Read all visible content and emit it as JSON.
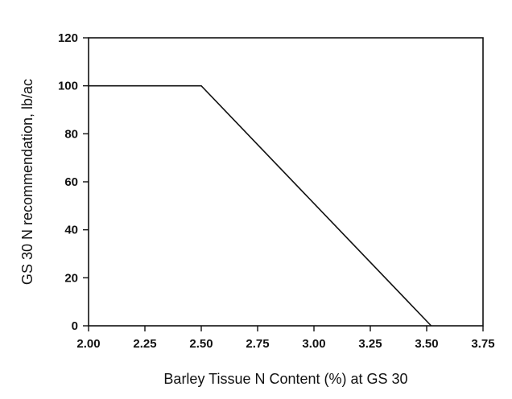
{
  "chart_data": {
    "type": "line",
    "title": "",
    "xlabel": "Barley Tissue N Content (%) at GS 30",
    "ylabel": "GS 30 N recommendation, lb/ac",
    "xlim": [
      2.0,
      3.75
    ],
    "ylim": [
      0,
      120
    ],
    "x_ticks": [
      "2.00",
      "2.25",
      "2.50",
      "2.75",
      "3.00",
      "3.25",
      "3.50",
      "3.75"
    ],
    "y_ticks": [
      "0",
      "20",
      "40",
      "60",
      "80",
      "100",
      "120"
    ],
    "grid": false,
    "legend": "none",
    "series": [
      {
        "x": [
          2.0,
          2.5,
          3.52
        ],
        "y": [
          100,
          100,
          0
        ]
      }
    ],
    "colors": {
      "line": "#111111",
      "axis": "#111111"
    }
  }
}
